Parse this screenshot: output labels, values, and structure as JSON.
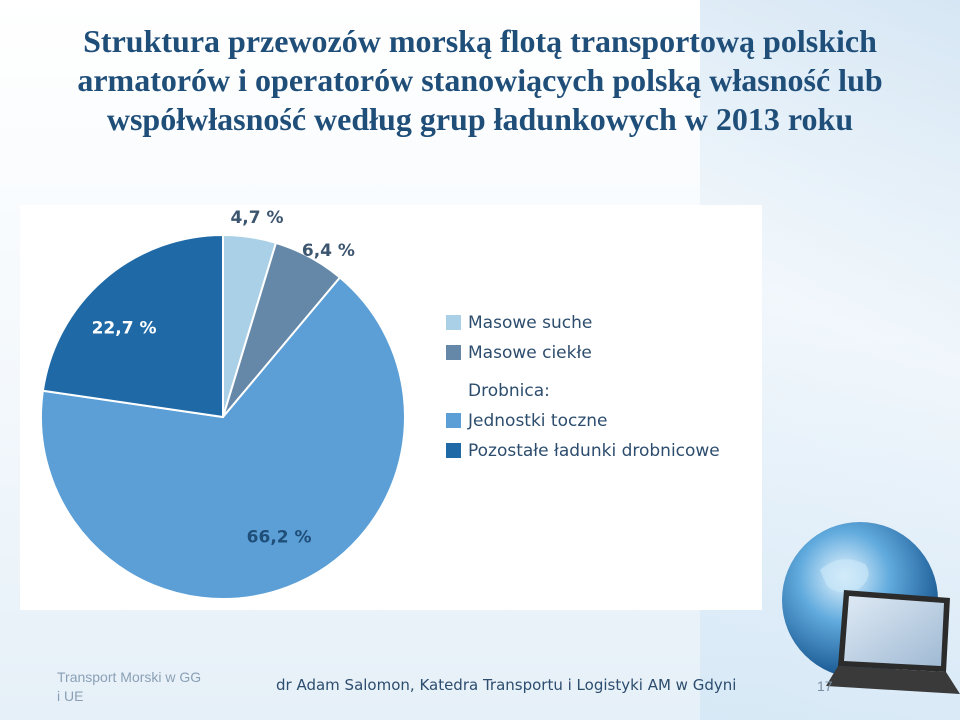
{
  "slide": {
    "title": "Struktura przewozów morską flotą transportową polskich armatorów i operatorów stanowiących polską własność lub współwłasność według grup ładunkowych w 2013 roku",
    "footer_left": "Transport Morski w GG i UE",
    "footer_center": "dr Adam Salomon, Katedra Transportu i Logistyki AM w Gdyni",
    "page_number": "17"
  },
  "chart_data": {
    "type": "pie",
    "categories": [
      "Masowe suche",
      "Masowe ciekłe",
      "Jednostki toczne",
      "Pozostałe ładunki drobnicowe"
    ],
    "values": [
      4.7,
      6.4,
      66.2,
      22.7
    ],
    "labels": [
      "4,7 %",
      "6,4 %",
      "66,2 %",
      "22,7 %"
    ],
    "colors": [
      "#a9d0e6",
      "#6688a8",
      "#5b9fd6",
      "#1f6aa6"
    ],
    "legend": {
      "placement": "right",
      "group_heading": "Drobnica:",
      "group_heading_before_index": 2
    }
  }
}
